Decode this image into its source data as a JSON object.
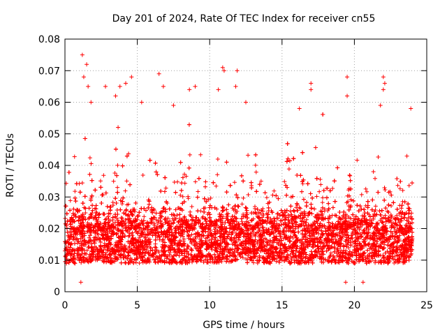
{
  "chart_data": {
    "type": "scatter",
    "title": "Day 201 of 2024, Rate Of TEC Index for receiver cn55",
    "xlabel": "GPS time / hours",
    "ylabel": "ROTI / TECUs",
    "xlim": [
      0,
      25
    ],
    "ylim": [
      0,
      0.08
    ],
    "x_ticks": [
      0,
      5,
      10,
      15,
      20,
      25
    ],
    "x_tick_labels": [
      "0",
      "5",
      "10",
      "15",
      "20",
      "25"
    ],
    "y_ticks": [
      0,
      0.01,
      0.02,
      0.03,
      0.04,
      0.05,
      0.06,
      0.07,
      0.08
    ],
    "y_tick_labels": [
      "0",
      "0.01",
      "0.02",
      "0.03",
      "0.04",
      "0.05",
      "0.06",
      "0.07",
      "0.08"
    ],
    "grid": true,
    "marker": "+",
    "color": "#ff0000",
    "series": [
      {
        "name": "ROTI",
        "x_range": [
          0,
          24
        ],
        "typical_band": [
          0.005,
          0.03
        ],
        "median": 0.014,
        "point_count": 8000,
        "outliers": [
          [
            1.2,
            0.075
          ],
          [
            1.5,
            0.072
          ],
          [
            1.3,
            0.068
          ],
          [
            1.6,
            0.065
          ],
          [
            2.8,
            0.065
          ],
          [
            3.8,
            0.065
          ],
          [
            4.2,
            0.066
          ],
          [
            4.6,
            0.068
          ],
          [
            6.5,
            0.069
          ],
          [
            6.8,
            0.065
          ],
          [
            8.6,
            0.064
          ],
          [
            9.0,
            0.065
          ],
          [
            10.9,
            0.071
          ],
          [
            11.0,
            0.07
          ],
          [
            11.9,
            0.07
          ],
          [
            11.8,
            0.065
          ],
          [
            17.0,
            0.066
          ],
          [
            17.0,
            0.064
          ],
          [
            19.5,
            0.068
          ],
          [
            22.0,
            0.068
          ],
          [
            22.1,
            0.066
          ],
          [
            22.0,
            0.064
          ],
          [
            1.8,
            0.06
          ],
          [
            3.5,
            0.062
          ],
          [
            5.3,
            0.06
          ],
          [
            7.5,
            0.059
          ],
          [
            10.6,
            0.064
          ],
          [
            12.5,
            0.06
          ],
          [
            16.2,
            0.058
          ],
          [
            19.5,
            0.062
          ],
          [
            21.8,
            0.059
          ],
          [
            23.9,
            0.058
          ],
          [
            19.4,
            0.003
          ],
          [
            20.6,
            0.003
          ],
          [
            1.1,
            0.003
          ]
        ]
      }
    ]
  }
}
